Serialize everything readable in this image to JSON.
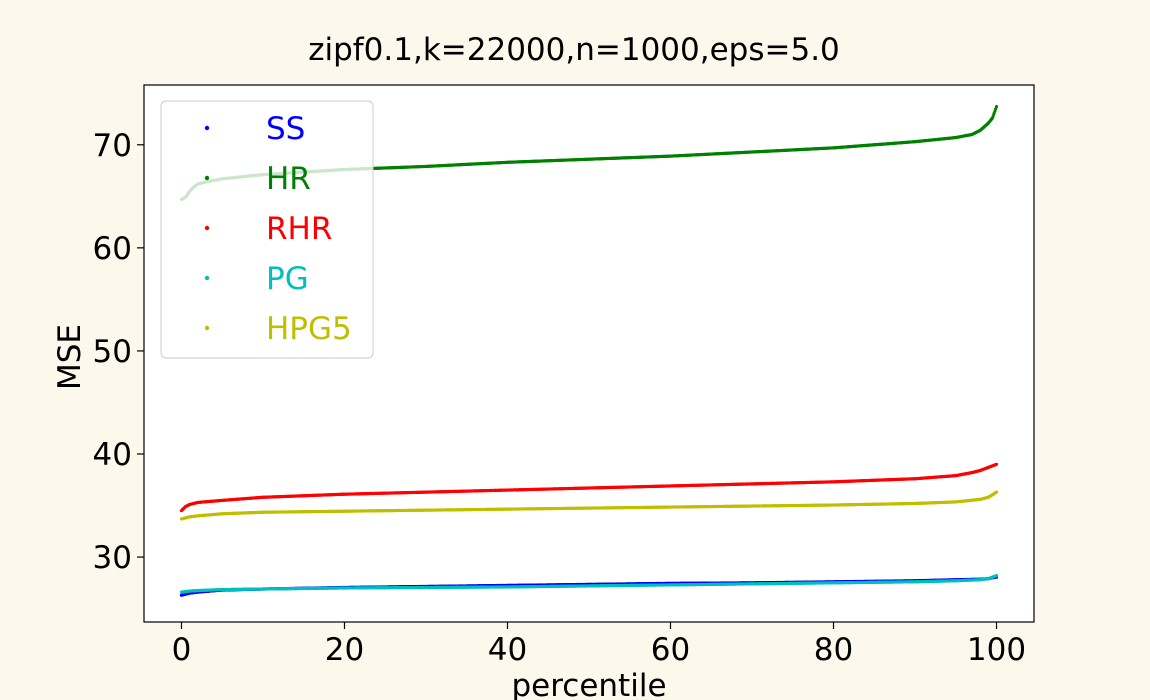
{
  "chart_data": {
    "type": "scatter",
    "title": "zipf0.1,k=22000,n=1000,eps=5.0",
    "xlabel": "percentile",
    "ylabel": "MSE",
    "xlim": [
      -4.6,
      104.6
    ],
    "ylim": [
      23.7,
      75.8
    ],
    "xticks": [
      0,
      20,
      40,
      60,
      80,
      100
    ],
    "yticks": [
      30,
      40,
      50,
      60,
      70
    ],
    "grid": false,
    "legend_position": "upper-left",
    "series": [
      {
        "name": "SS",
        "color": "#0000ff",
        "points": [
          [
            0,
            26.3
          ],
          [
            0.5,
            26.4
          ],
          [
            1,
            26.5
          ],
          [
            2,
            26.6
          ],
          [
            5,
            26.8
          ],
          [
            10,
            26.9
          ],
          [
            20,
            27.05
          ],
          [
            30,
            27.15
          ],
          [
            40,
            27.25
          ],
          [
            50,
            27.35
          ],
          [
            60,
            27.45
          ],
          [
            70,
            27.5
          ],
          [
            80,
            27.6
          ],
          [
            90,
            27.7
          ],
          [
            95,
            27.8
          ],
          [
            98,
            27.85
          ],
          [
            99,
            27.9
          ],
          [
            99.5,
            28.0
          ],
          [
            100,
            28.05
          ]
        ]
      },
      {
        "name": "HR",
        "color": "#008000",
        "points": [
          [
            0,
            64.7
          ],
          [
            0.5,
            64.9
          ],
          [
            1,
            65.5
          ],
          [
            1.5,
            65.9
          ],
          [
            2,
            66.2
          ],
          [
            3,
            66.4
          ],
          [
            5,
            66.7
          ],
          [
            10,
            67.1
          ],
          [
            20,
            67.6
          ],
          [
            30,
            67.9
          ],
          [
            40,
            68.3
          ],
          [
            50,
            68.6
          ],
          [
            60,
            68.9
          ],
          [
            70,
            69.3
          ],
          [
            80,
            69.7
          ],
          [
            90,
            70.3
          ],
          [
            95,
            70.7
          ],
          [
            97,
            71.0
          ],
          [
            98,
            71.4
          ],
          [
            99,
            72.1
          ],
          [
            99.5,
            72.6
          ],
          [
            100,
            73.7
          ]
        ]
      },
      {
        "name": "RHR",
        "color": "#ff0000",
        "points": [
          [
            0,
            34.5
          ],
          [
            0.5,
            34.9
          ],
          [
            1,
            35.1
          ],
          [
            2,
            35.3
          ],
          [
            5,
            35.5
          ],
          [
            10,
            35.8
          ],
          [
            20,
            36.1
          ],
          [
            30,
            36.3
          ],
          [
            40,
            36.5
          ],
          [
            50,
            36.7
          ],
          [
            60,
            36.9
          ],
          [
            70,
            37.1
          ],
          [
            80,
            37.3
          ],
          [
            90,
            37.6
          ],
          [
            95,
            37.9
          ],
          [
            97,
            38.2
          ],
          [
            98,
            38.4
          ],
          [
            99,
            38.7
          ],
          [
            100,
            39.0
          ]
        ]
      },
      {
        "name": "PG",
        "color": "#00bfbf",
        "points": [
          [
            0,
            26.6
          ],
          [
            0.5,
            26.65
          ],
          [
            1,
            26.7
          ],
          [
            2,
            26.75
          ],
          [
            5,
            26.85
          ],
          [
            10,
            26.9
          ],
          [
            20,
            27.0
          ],
          [
            30,
            27.05
          ],
          [
            40,
            27.1
          ],
          [
            50,
            27.2
          ],
          [
            60,
            27.3
          ],
          [
            70,
            27.4
          ],
          [
            80,
            27.5
          ],
          [
            90,
            27.6
          ],
          [
            95,
            27.7
          ],
          [
            98,
            27.8
          ],
          [
            99,
            27.9
          ],
          [
            100,
            28.2
          ]
        ]
      },
      {
        "name": "HPG5",
        "color": "#bfbf00",
        "points": [
          [
            0,
            33.7
          ],
          [
            0.5,
            33.8
          ],
          [
            1,
            33.9
          ],
          [
            2,
            34.0
          ],
          [
            5,
            34.2
          ],
          [
            10,
            34.35
          ],
          [
            20,
            34.45
          ],
          [
            30,
            34.55
          ],
          [
            40,
            34.65
          ],
          [
            50,
            34.75
          ],
          [
            60,
            34.85
          ],
          [
            70,
            34.95
          ],
          [
            80,
            35.05
          ],
          [
            90,
            35.2
          ],
          [
            95,
            35.35
          ],
          [
            98,
            35.6
          ],
          [
            99,
            35.8
          ],
          [
            100,
            36.3
          ]
        ]
      }
    ]
  }
}
